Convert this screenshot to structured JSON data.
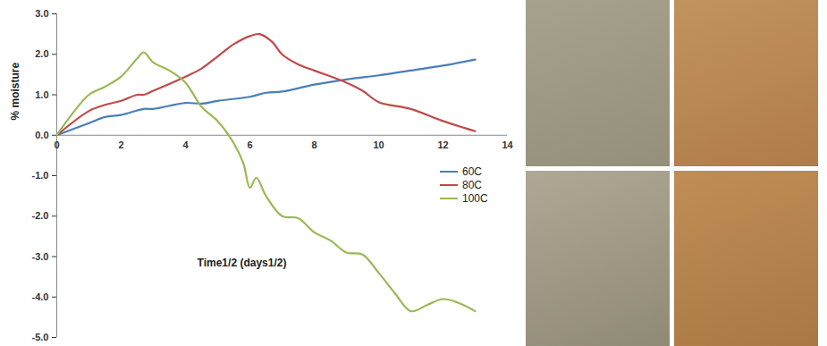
{
  "chart_data": {
    "type": "line",
    "xlabel": "Time1/2 (days1/2)",
    "ylabel": "% moisture",
    "xlim": [
      0,
      14
    ],
    "xticks": [
      0,
      2,
      4,
      6,
      8,
      10,
      12,
      14
    ],
    "ylim": [
      -5,
      3
    ],
    "yticks": [
      {
        "value": -5,
        "label": "-5.0"
      },
      {
        "value": -4,
        "label": "-4.0"
      },
      {
        "value": -3,
        "label": "-3.0"
      },
      {
        "value": -2,
        "label": "-2.0"
      },
      {
        "value": -1,
        "label": "-1.0"
      },
      {
        "value": 0,
        "label": "0.0"
      },
      {
        "value": 1,
        "label": "1.0"
      },
      {
        "value": 2,
        "label": "2.0"
      },
      {
        "value": 3,
        "label": "3.0"
      }
    ],
    "grid": false,
    "legend": "right",
    "series": [
      {
        "name": "60C",
        "color": "#4a7ebb",
        "x": [
          0,
          1,
          1.5,
          2,
          2.7,
          3,
          4,
          4.5,
          5,
          6,
          6.5,
          7,
          8,
          9,
          10,
          11,
          12,
          13
        ],
        "values": [
          0,
          0.3,
          0.45,
          0.5,
          0.65,
          0.65,
          0.8,
          0.78,
          0.85,
          0.95,
          1.05,
          1.08,
          1.25,
          1.38,
          1.48,
          1.6,
          1.72,
          1.87
        ]
      },
      {
        "name": "80C",
        "color": "#be4b48",
        "x": [
          0,
          1,
          1.5,
          2,
          2.5,
          2.7,
          3,
          4,
          4.5,
          5,
          5.5,
          6,
          6.3,
          6.7,
          7,
          7.5,
          8,
          9,
          9.5,
          10,
          11,
          12,
          13
        ],
        "values": [
          0,
          0.6,
          0.75,
          0.85,
          1.0,
          1.0,
          1.1,
          1.45,
          1.65,
          1.95,
          2.25,
          2.45,
          2.5,
          2.3,
          2.0,
          1.75,
          1.6,
          1.3,
          1.1,
          0.82,
          0.65,
          0.35,
          0.1
        ]
      },
      {
        "name": "100C",
        "color": "#98b954",
        "x": [
          0,
          0.5,
          1,
          1.5,
          2,
          2.5,
          2.7,
          3,
          3.5,
          4,
          4.5,
          5,
          5.5,
          5.8,
          6,
          6.2,
          6.5,
          7,
          7.5,
          8,
          8.5,
          9,
          9.5,
          10,
          10.5,
          11,
          11.5,
          12,
          12.5,
          13
        ],
        "values": [
          0,
          0.55,
          1.0,
          1.2,
          1.45,
          1.9,
          2.05,
          1.8,
          1.6,
          1.3,
          0.7,
          0.35,
          -0.2,
          -0.7,
          -1.3,
          -1.05,
          -1.5,
          -2.0,
          -2.05,
          -2.4,
          -2.6,
          -2.9,
          -2.95,
          -3.4,
          -3.9,
          -4.35,
          -4.2,
          -4.05,
          -4.15,
          -4.35
        ]
      }
    ]
  }
}
